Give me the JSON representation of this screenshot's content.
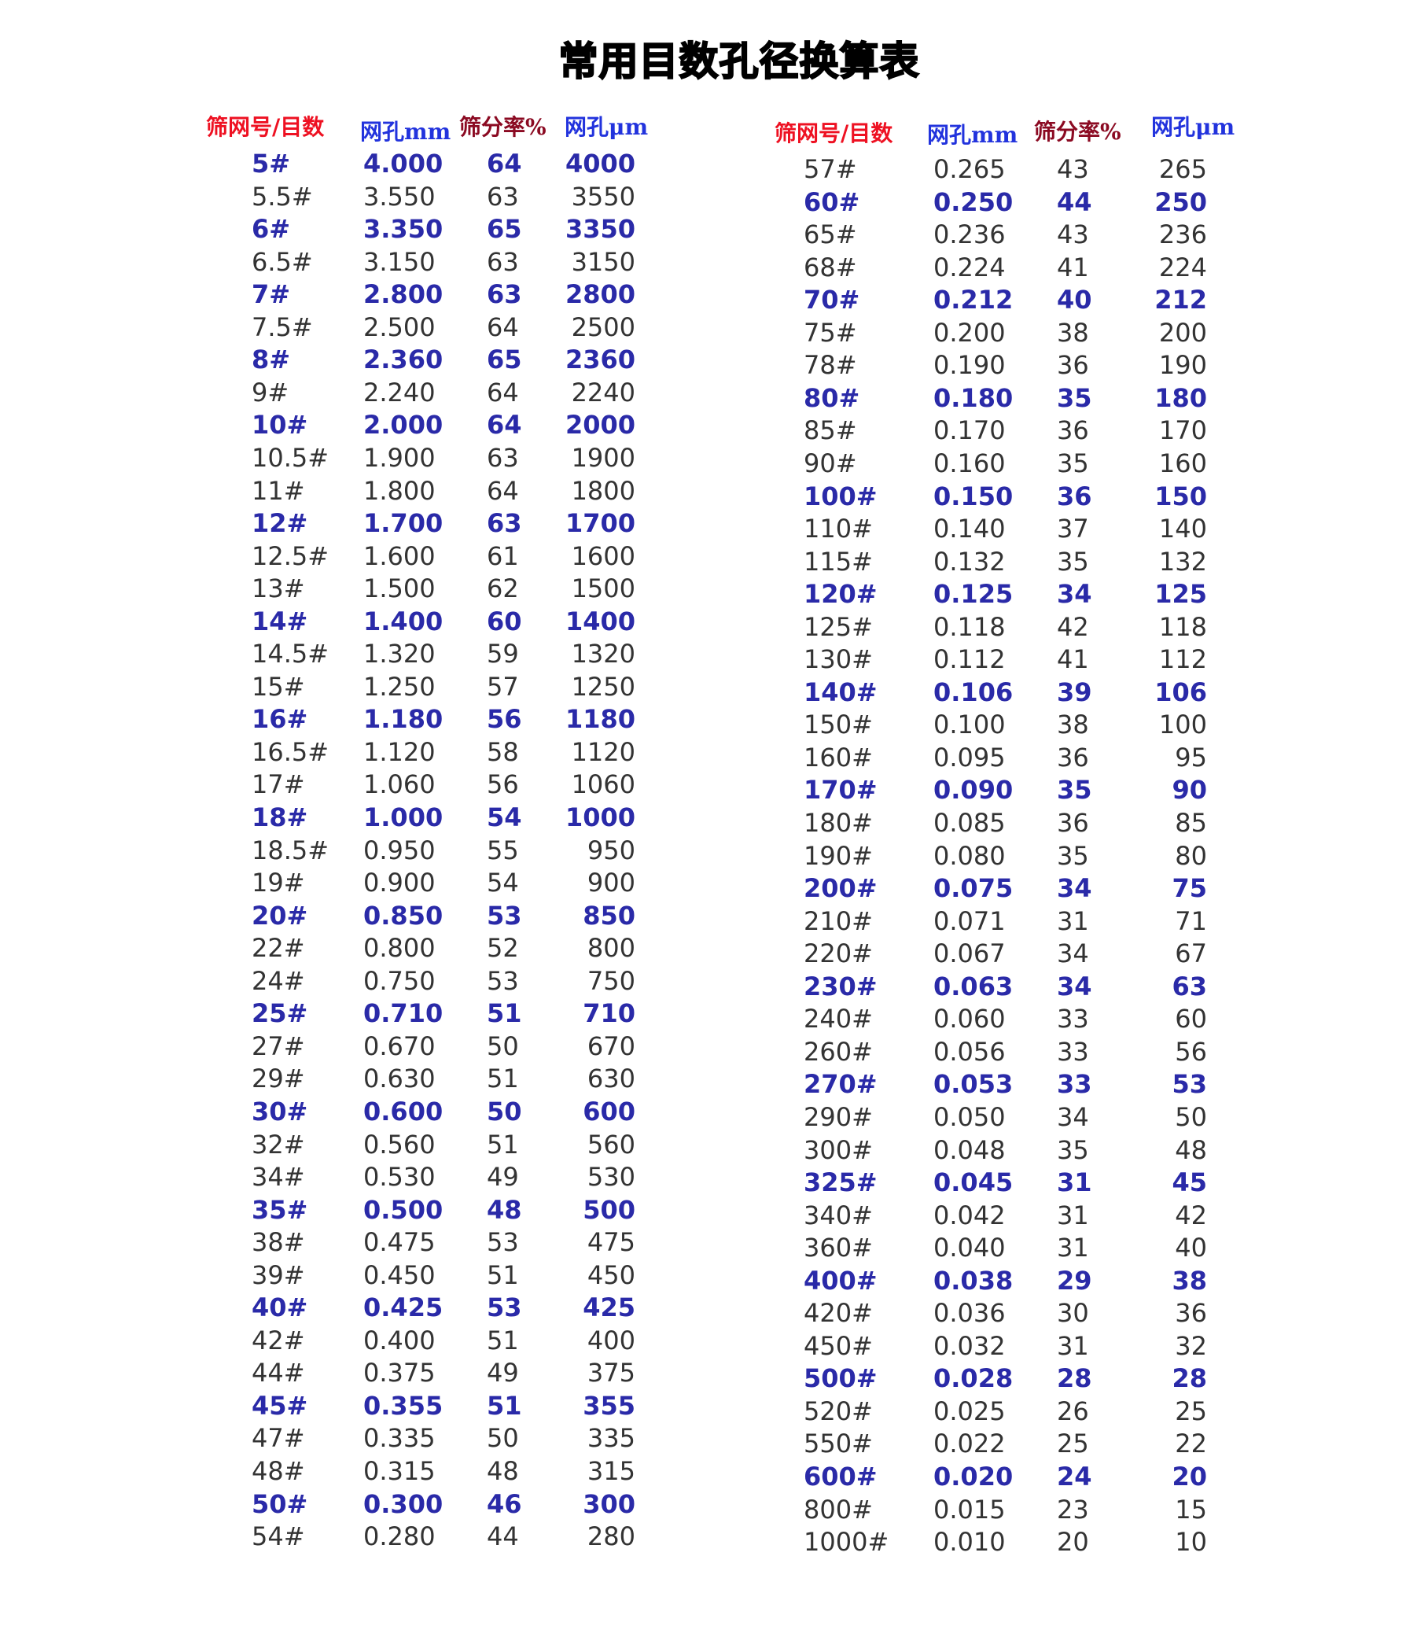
{
  "title": "常用目数孔径换算表",
  "headers": [
    "筛网号/目数",
    "网孔mm",
    "筛分率%",
    "网孔μm"
  ],
  "colors": {
    "header_mesh": "#ee1122",
    "header_aperture": "#2233dd",
    "header_rate": "#8b0a22",
    "highlight_row": "#2a2aa8",
    "normal_row": "#333333"
  },
  "left_table": [
    [
      "5#",
      "4.000",
      "64",
      "4000",
      true
    ],
    [
      "5.5#",
      "3.550",
      "63",
      "3550",
      false
    ],
    [
      "6#",
      "3.350",
      "65",
      "3350",
      true
    ],
    [
      "6.5#",
      "3.150",
      "63",
      "3150",
      false
    ],
    [
      "7#",
      "2.800",
      "63",
      "2800",
      true
    ],
    [
      "7.5#",
      "2.500",
      "64",
      "2500",
      false
    ],
    [
      "8#",
      "2.360",
      "65",
      "2360",
      true
    ],
    [
      "9#",
      "2.240",
      "64",
      "2240",
      false
    ],
    [
      "10#",
      "2.000",
      "64",
      "2000",
      true
    ],
    [
      "10.5#",
      "1.900",
      "63",
      "1900",
      false
    ],
    [
      "11#",
      "1.800",
      "64",
      "1800",
      false
    ],
    [
      "12#",
      "1.700",
      "63",
      "1700",
      true
    ],
    [
      "12.5#",
      "1.600",
      "61",
      "1600",
      false
    ],
    [
      "13#",
      "1.500",
      "62",
      "1500",
      false
    ],
    [
      "14#",
      "1.400",
      "60",
      "1400",
      true
    ],
    [
      "14.5#",
      "1.320",
      "59",
      "1320",
      false
    ],
    [
      "15#",
      "1.250",
      "57",
      "1250",
      false
    ],
    [
      "16#",
      "1.180",
      "56",
      "1180",
      true
    ],
    [
      "16.5#",
      "1.120",
      "58",
      "1120",
      false
    ],
    [
      "17#",
      "1.060",
      "56",
      "1060",
      false
    ],
    [
      "18#",
      "1.000",
      "54",
      "1000",
      true
    ],
    [
      "18.5#",
      "0.950",
      "55",
      "950",
      false
    ],
    [
      "19#",
      "0.900",
      "54",
      "900",
      false
    ],
    [
      "20#",
      "0.850",
      "53",
      "850",
      true
    ],
    [
      "22#",
      "0.800",
      "52",
      "800",
      false
    ],
    [
      "24#",
      "0.750",
      "53",
      "750",
      false
    ],
    [
      "25#",
      "0.710",
      "51",
      "710",
      true
    ],
    [
      "27#",
      "0.670",
      "50",
      "670",
      false
    ],
    [
      "29#",
      "0.630",
      "51",
      "630",
      false
    ],
    [
      "30#",
      "0.600",
      "50",
      "600",
      true
    ],
    [
      "32#",
      "0.560",
      "51",
      "560",
      false
    ],
    [
      "34#",
      "0.530",
      "49",
      "530",
      false
    ],
    [
      "35#",
      "0.500",
      "48",
      "500",
      true
    ],
    [
      "38#",
      "0.475",
      "53",
      "475",
      false
    ],
    [
      "39#",
      "0.450",
      "51",
      "450",
      false
    ],
    [
      "40#",
      "0.425",
      "53",
      "425",
      true
    ],
    [
      "42#",
      "0.400",
      "51",
      "400",
      false
    ],
    [
      "44#",
      "0.375",
      "49",
      "375",
      false
    ],
    [
      "45#",
      "0.355",
      "51",
      "355",
      true
    ],
    [
      "47#",
      "0.335",
      "50",
      "335",
      false
    ],
    [
      "48#",
      "0.315",
      "48",
      "315",
      false
    ],
    [
      "50#",
      "0.300",
      "46",
      "300",
      true
    ],
    [
      "54#",
      "0.280",
      "44",
      "280",
      false
    ]
  ],
  "right_table": [
    [
      "57#",
      "0.265",
      "43",
      "265",
      false
    ],
    [
      "60#",
      "0.250",
      "44",
      "250",
      true
    ],
    [
      "65#",
      "0.236",
      "43",
      "236",
      false
    ],
    [
      "68#",
      "0.224",
      "41",
      "224",
      false
    ],
    [
      "70#",
      "0.212",
      "40",
      "212",
      true
    ],
    [
      "75#",
      "0.200",
      "38",
      "200",
      false
    ],
    [
      "78#",
      "0.190",
      "36",
      "190",
      false
    ],
    [
      "80#",
      "0.180",
      "35",
      "180",
      true
    ],
    [
      "85#",
      "0.170",
      "36",
      "170",
      false
    ],
    [
      "90#",
      "0.160",
      "35",
      "160",
      false
    ],
    [
      "100#",
      "0.150",
      "36",
      "150",
      true
    ],
    [
      "110#",
      "0.140",
      "37",
      "140",
      false
    ],
    [
      "115#",
      "0.132",
      "35",
      "132",
      false
    ],
    [
      "120#",
      "0.125",
      "34",
      "125",
      true
    ],
    [
      "125#",
      "0.118",
      "42",
      "118",
      false
    ],
    [
      "130#",
      "0.112",
      "41",
      "112",
      false
    ],
    [
      "140#",
      "0.106",
      "39",
      "106",
      true
    ],
    [
      "150#",
      "0.100",
      "38",
      "100",
      false
    ],
    [
      "160#",
      "0.095",
      "36",
      "95",
      false
    ],
    [
      "170#",
      "0.090",
      "35",
      "90",
      true
    ],
    [
      "180#",
      "0.085",
      "36",
      "85",
      false
    ],
    [
      "190#",
      "0.080",
      "35",
      "80",
      false
    ],
    [
      "200#",
      "0.075",
      "34",
      "75",
      true
    ],
    [
      "210#",
      "0.071",
      "31",
      "71",
      false
    ],
    [
      "220#",
      "0.067",
      "34",
      "67",
      false
    ],
    [
      "230#",
      "0.063",
      "34",
      "63",
      true
    ],
    [
      "240#",
      "0.060",
      "33",
      "60",
      false
    ],
    [
      "260#",
      "0.056",
      "33",
      "56",
      false
    ],
    [
      "270#",
      "0.053",
      "33",
      "53",
      true
    ],
    [
      "290#",
      "0.050",
      "34",
      "50",
      false
    ],
    [
      "300#",
      "0.048",
      "35",
      "48",
      false
    ],
    [
      "325#",
      "0.045",
      "31",
      "45",
      true
    ],
    [
      "340#",
      "0.042",
      "31",
      "42",
      false
    ],
    [
      "360#",
      "0.040",
      "31",
      "40",
      false
    ],
    [
      "400#",
      "0.038",
      "29",
      "38",
      true
    ],
    [
      "420#",
      "0.036",
      "30",
      "36",
      false
    ],
    [
      "450#",
      "0.032",
      "31",
      "32",
      false
    ],
    [
      "500#",
      "0.028",
      "28",
      "28",
      true
    ],
    [
      "520#",
      "0.025",
      "26",
      "25",
      false
    ],
    [
      "550#",
      "0.022",
      "25",
      "22",
      false
    ],
    [
      "600#",
      "0.020",
      "24",
      "20",
      true
    ],
    [
      "800#",
      "0.015",
      "23",
      "15",
      false
    ],
    [
      "1000#",
      "0.010",
      "20",
      "10",
      false
    ]
  ]
}
